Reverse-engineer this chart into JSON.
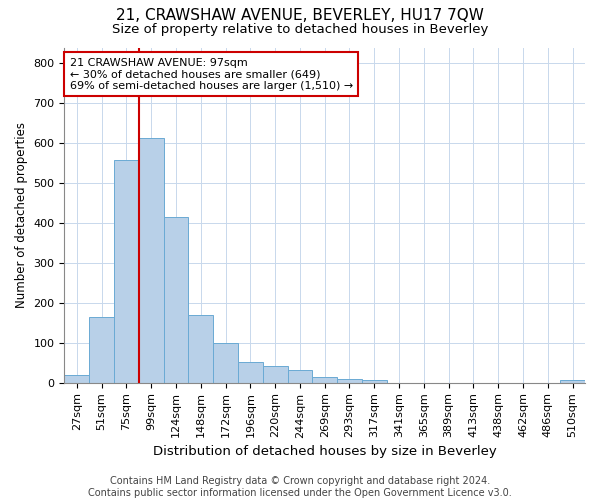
{
  "title": "21, CRAWSHAW AVENUE, BEVERLEY, HU17 7QW",
  "subtitle": "Size of property relative to detached houses in Beverley",
  "xlabel": "Distribution of detached houses by size in Beverley",
  "ylabel": "Number of detached properties",
  "categories": [
    "27sqm",
    "51sqm",
    "75sqm",
    "99sqm",
    "124sqm",
    "148sqm",
    "172sqm",
    "196sqm",
    "220sqm",
    "244sqm",
    "269sqm",
    "293sqm",
    "317sqm",
    "341sqm",
    "365sqm",
    "389sqm",
    "413sqm",
    "438sqm",
    "462sqm",
    "486sqm",
    "510sqm"
  ],
  "values": [
    20,
    165,
    558,
    612,
    415,
    170,
    100,
    52,
    42,
    33,
    15,
    10,
    8,
    0,
    0,
    0,
    0,
    0,
    0,
    0,
    8
  ],
  "bar_color": "#b8d0e8",
  "bar_edge_color": "#6aaad4",
  "grid_color": "#c8d8ec",
  "vline_x_index": 3,
  "annotation_box_text": "21 CRAWSHAW AVENUE: 97sqm\n← 30% of detached houses are smaller (649)\n69% of semi-detached houses are larger (1,510) →",
  "annotation_box_color": "#ffffff",
  "annotation_box_edge_color": "#cc0000",
  "vline_color": "#cc0000",
  "footer_line1": "Contains HM Land Registry data © Crown copyright and database right 2024.",
  "footer_line2": "Contains public sector information licensed under the Open Government Licence v3.0.",
  "ylim": [
    0,
    840
  ],
  "yticks": [
    0,
    100,
    200,
    300,
    400,
    500,
    600,
    700,
    800
  ],
  "title_fontsize": 11,
  "subtitle_fontsize": 9.5,
  "xlabel_fontsize": 9.5,
  "ylabel_fontsize": 8.5,
  "tick_fontsize": 8,
  "annotation_fontsize": 8,
  "footer_fontsize": 7
}
